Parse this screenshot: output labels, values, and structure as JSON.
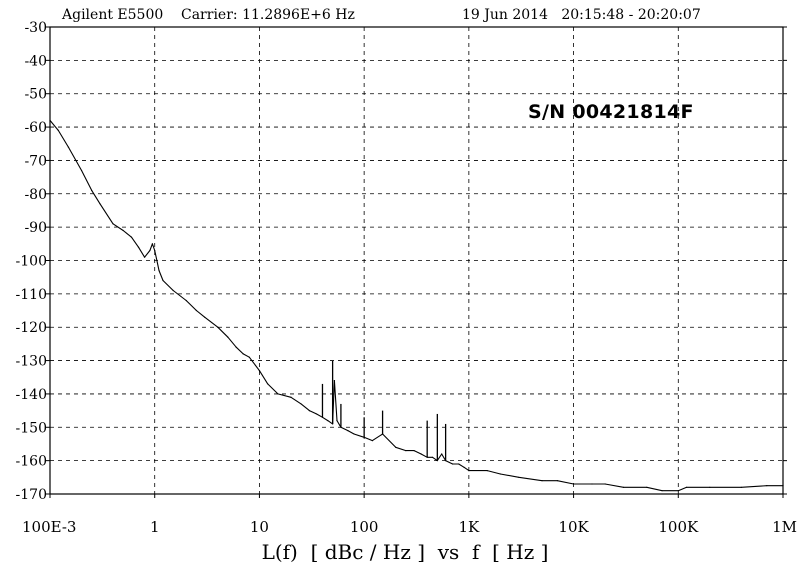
{
  "header": {
    "instrument": "Agilent E5500",
    "carrier": "Carrier: 11.2896E+6 Hz",
    "date_time": "19 Jun 2014   20:15:48 - 20:20:07"
  },
  "annotation": "S/N 00421814F",
  "chart_data": {
    "type": "line",
    "title": "",
    "xlabel": "L(f)  [ dBc / Hz ]  vs  f  [ Hz ]",
    "ylabel": "",
    "x_scale": "log",
    "xlim": [
      0.1,
      1000000
    ],
    "ylim": [
      -170,
      -30
    ],
    "grid": true,
    "x_tick_values": [
      0.1,
      1,
      10,
      100,
      1000,
      10000,
      100000,
      1000000
    ],
    "x_tick_labels": [
      "100E-3",
      "1",
      "10",
      "100",
      "1K",
      "10K",
      "100K",
      "1M"
    ],
    "y_tick_values": [
      -30,
      -40,
      -50,
      -60,
      -70,
      -80,
      -90,
      -100,
      -110,
      -120,
      -130,
      -140,
      -150,
      -160,
      -170
    ],
    "y_tick_labels": [
      "-30",
      "-40",
      "-50",
      "-60",
      "-70",
      "-80",
      "-90",
      "-100",
      "-110",
      "-120",
      "-130",
      "-140",
      "-150",
      "-160",
      "-170"
    ],
    "series": [
      {
        "color": "#000000",
        "x": [
          0.1,
          0.12,
          0.15,
          0.2,
          0.25,
          0.3,
          0.4,
          0.5,
          0.6,
          0.7,
          0.8,
          0.9,
          0.95,
          1.0,
          1.05,
          1.1,
          1.2,
          1.5,
          2,
          2.5,
          3,
          4,
          5,
          6,
          7,
          8,
          10,
          12,
          15,
          20,
          25,
          30,
          35,
          40,
          45,
          50,
          52,
          55,
          60,
          70,
          80,
          100,
          120,
          150,
          200,
          250,
          300,
          350,
          400,
          450,
          500,
          550,
          600,
          700,
          800,
          900,
          1000,
          1500,
          2000,
          3000,
          5000,
          7000,
          10000,
          15000,
          20000,
          30000,
          50000,
          70000,
          100000,
          120000,
          200000,
          400000,
          700000,
          1000000
        ],
        "y": [
          -58,
          -61,
          -66,
          -73,
          -79,
          -83,
          -89,
          -91,
          -93,
          -96,
          -99,
          -97,
          -95,
          -97,
          -100,
          -103,
          -106,
          -109,
          -112,
          -115,
          -117,
          -120,
          -123,
          -126,
          -128,
          -129,
          -133,
          -137,
          -140,
          -141,
          -143,
          -145,
          -146,
          -147,
          -148,
          -149,
          -136,
          -148,
          -150,
          -151,
          -152,
          -153,
          -154,
          -152,
          -156,
          -157,
          -157,
          -158,
          -159,
          -159,
          -160,
          -158,
          -160,
          -161,
          -161,
          -162,
          -163,
          -163,
          -164,
          -165,
          -166,
          -166,
          -167,
          -167,
          -167,
          -168,
          -168,
          -169,
          -169,
          -168,
          -168,
          -168,
          -167.5,
          -167.5
        ]
      }
    ],
    "spurs": [
      {
        "x": 0.95,
        "y": -95
      },
      {
        "x": 40,
        "y": -137
      },
      {
        "x": 50,
        "y": -130
      },
      {
        "x": 60,
        "y": -143
      },
      {
        "x": 100,
        "y": -147
      },
      {
        "x": 150,
        "y": -145
      },
      {
        "x": 400,
        "y": -148
      },
      {
        "x": 500,
        "y": -146
      },
      {
        "x": 600,
        "y": -149
      }
    ]
  }
}
